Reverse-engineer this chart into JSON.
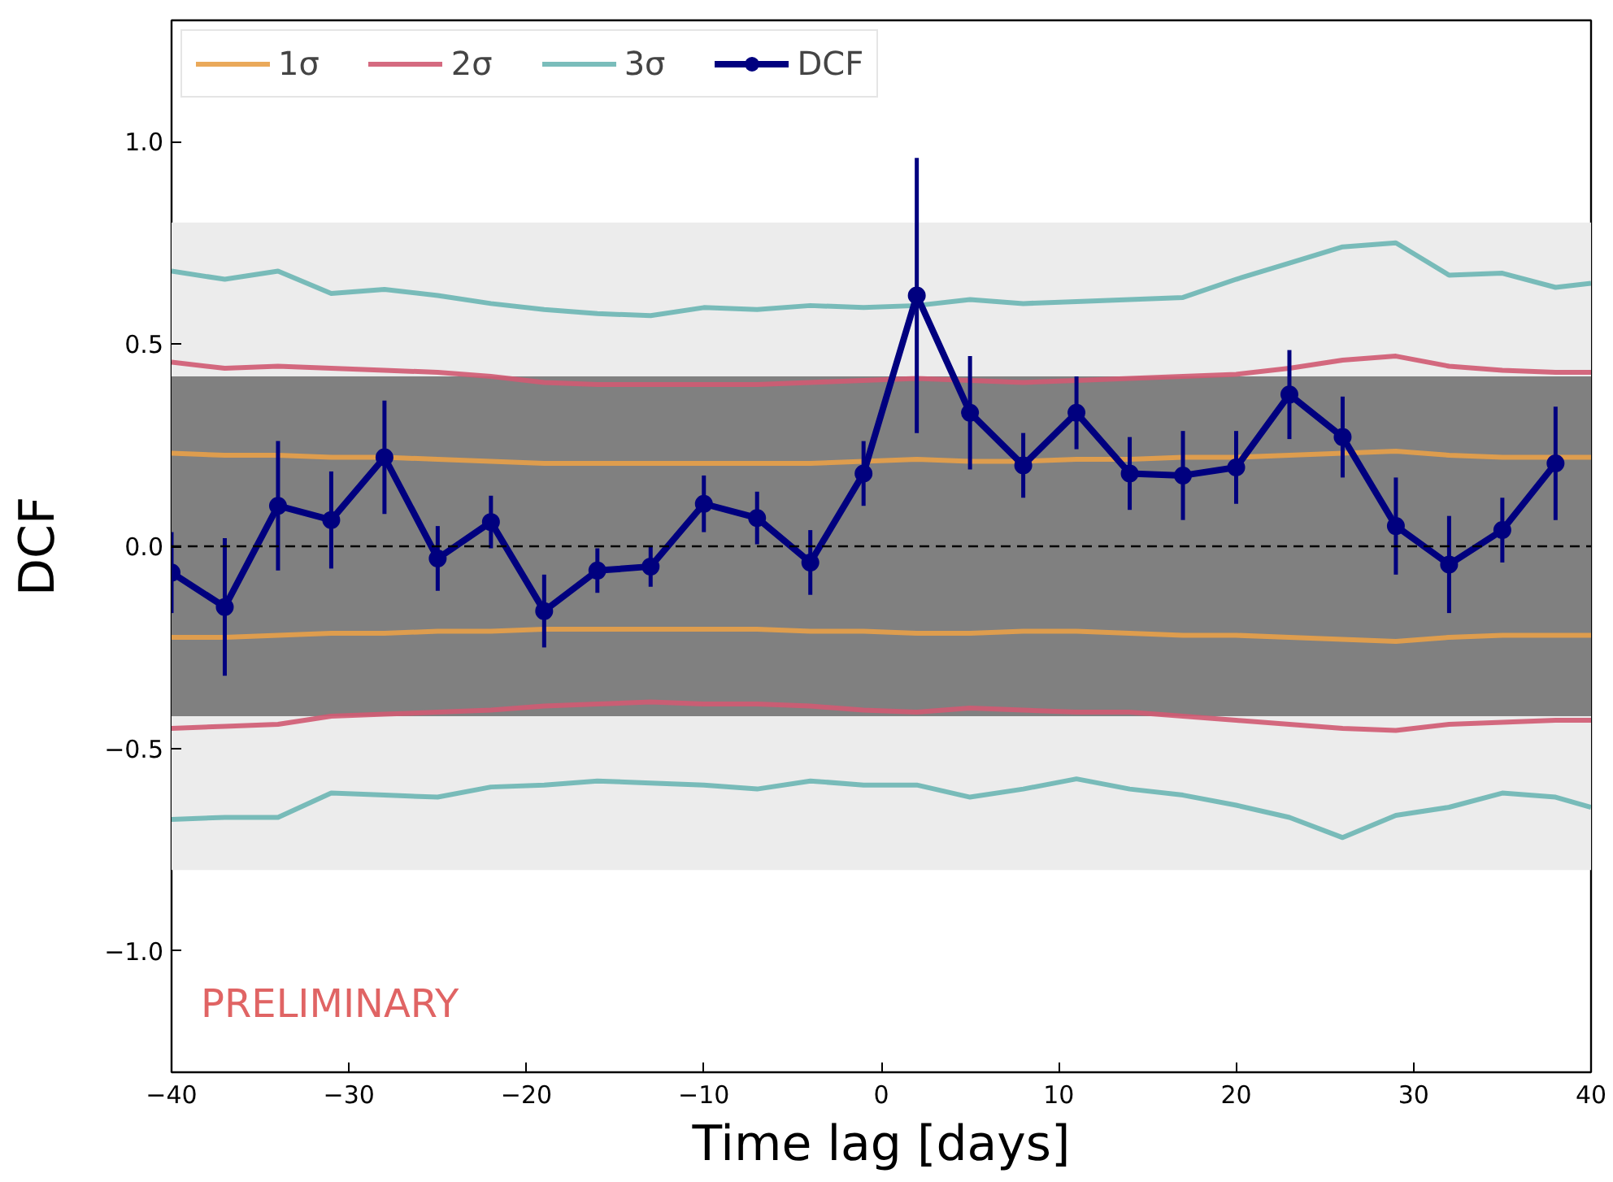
{
  "chart_data": {
    "type": "line",
    "xlabel": "Time lag [days]",
    "ylabel": "DCF",
    "xlim": [
      -40,
      40
    ],
    "ylim": [
      -1.3,
      1.3
    ],
    "xticks": [
      {
        "value": -40,
        "label": "−40"
      },
      {
        "value": -30,
        "label": "−30"
      },
      {
        "value": -20,
        "label": "−20"
      },
      {
        "value": -10,
        "label": "−10"
      },
      0,
      10,
      20,
      30,
      40
    ],
    "yticks": [
      {
        "value": -1,
        "label": "−1.0"
      },
      {
        "value": -0.5,
        "label": "−0.5"
      },
      {
        "value": 0,
        "label": "0.0"
      },
      {
        "value": 0.5,
        "label": "0.5"
      },
      {
        "value": 1,
        "label": "1.0"
      }
    ],
    "grid": false,
    "legend": "top left",
    "marker": "circle",
    "line_style": "solid",
    "series": [
      {
        "name": "1σ",
        "color": "#e8a048",
        "marker": "none",
        "x": [
          -40,
          -37,
          -34,
          -31,
          -28,
          -25,
          -22,
          -19,
          -16,
          -13,
          -10,
          -7,
          -4,
          -1,
          2,
          5,
          8,
          11,
          14,
          17,
          20,
          23,
          26,
          29,
          32,
          35,
          38,
          40
        ],
        "values": [
          0.23,
          0.225,
          0.225,
          0.22,
          0.22,
          0.215,
          0.21,
          0.205,
          0.205,
          0.205,
          0.205,
          0.205,
          0.205,
          0.21,
          0.215,
          0.21,
          0.21,
          0.215,
          0.215,
          0.22,
          0.22,
          0.225,
          0.23,
          0.235,
          0.225,
          0.22,
          0.22,
          0.22
        ]
      },
      {
        "color": "#e8a048",
        "marker": "none",
        "x": [
          -40,
          -37,
          -34,
          -31,
          -28,
          -25,
          -22,
          -19,
          -16,
          -13,
          -10,
          -7,
          -4,
          -1,
          2,
          5,
          8,
          11,
          14,
          17,
          20,
          23,
          26,
          29,
          32,
          35,
          38,
          40
        ],
        "values": [
          -0.225,
          -0.225,
          -0.22,
          -0.215,
          -0.215,
          -0.21,
          -0.21,
          -0.205,
          -0.205,
          -0.205,
          -0.205,
          -0.205,
          -0.21,
          -0.21,
          -0.215,
          -0.215,
          -0.21,
          -0.21,
          -0.215,
          -0.22,
          -0.22,
          -0.225,
          -0.23,
          -0.235,
          -0.225,
          -0.22,
          -0.22,
          -0.22
        ]
      },
      {
        "name": "2σ",
        "color": "#d05a72",
        "marker": "none",
        "x": [
          -40,
          -37,
          -34,
          -31,
          -28,
          -25,
          -22,
          -19,
          -16,
          -13,
          -10,
          -7,
          -4,
          -1,
          2,
          5,
          8,
          11,
          14,
          17,
          20,
          23,
          26,
          29,
          32,
          35,
          38,
          40
        ],
        "values": [
          0.455,
          0.44,
          0.445,
          0.44,
          0.435,
          0.43,
          0.42,
          0.405,
          0.4,
          0.4,
          0.4,
          0.4,
          0.405,
          0.41,
          0.415,
          0.41,
          0.405,
          0.41,
          0.415,
          0.42,
          0.425,
          0.44,
          0.46,
          0.47,
          0.445,
          0.435,
          0.43,
          0.43
        ]
      },
      {
        "color": "#d05a72",
        "marker": "none",
        "x": [
          -40,
          -37,
          -34,
          -31,
          -28,
          -25,
          -22,
          -19,
          -16,
          -13,
          -10,
          -7,
          -4,
          -1,
          2,
          5,
          8,
          11,
          14,
          17,
          20,
          23,
          26,
          29,
          32,
          35,
          38,
          40
        ],
        "values": [
          -0.45,
          -0.445,
          -0.44,
          -0.42,
          -0.415,
          -0.41,
          -0.405,
          -0.395,
          -0.39,
          -0.385,
          -0.39,
          -0.39,
          -0.395,
          -0.405,
          -0.41,
          -0.4,
          -0.405,
          -0.41,
          -0.41,
          -0.42,
          -0.43,
          -0.44,
          -0.45,
          -0.455,
          -0.44,
          -0.435,
          -0.43,
          -0.43
        ]
      },
      {
        "name": "3σ",
        "color": "#6cb6b4",
        "marker": "none",
        "x": [
          -40,
          -37,
          -34,
          -31,
          -28,
          -25,
          -22,
          -19,
          -16,
          -13,
          -10,
          -7,
          -4,
          -1,
          2,
          5,
          8,
          11,
          14,
          17,
          20,
          23,
          26,
          29,
          32,
          35,
          38,
          40
        ],
        "values": [
          0.68,
          0.66,
          0.68,
          0.625,
          0.635,
          0.62,
          0.6,
          0.585,
          0.575,
          0.57,
          0.59,
          0.585,
          0.595,
          0.59,
          0.595,
          0.61,
          0.6,
          0.605,
          0.61,
          0.615,
          0.66,
          0.7,
          0.74,
          0.75,
          0.67,
          0.675,
          0.64,
          0.65
        ]
      },
      {
        "color": "#6cb6b4",
        "marker": "none",
        "x": [
          -40,
          -37,
          -34,
          -31,
          -28,
          -25,
          -22,
          -19,
          -16,
          -13,
          -10,
          -7,
          -4,
          -1,
          2,
          5,
          8,
          11,
          14,
          17,
          20,
          23,
          26,
          29,
          32,
          35,
          38,
          40
        ],
        "values": [
          -0.675,
          -0.67,
          -0.67,
          -0.61,
          -0.615,
          -0.62,
          -0.595,
          -0.59,
          -0.58,
          -0.585,
          -0.59,
          -0.6,
          -0.58,
          -0.59,
          -0.59,
          -0.62,
          -0.6,
          -0.575,
          -0.6,
          -0.615,
          -0.64,
          -0.67,
          -0.72,
          -0.665,
          -0.645,
          -0.61,
          -0.62,
          -0.645
        ]
      },
      {
        "name": "DCF",
        "color": "#00007f",
        "x": [
          -40,
          -37,
          -34,
          -31,
          -28,
          -25,
          -22,
          -19,
          -16,
          -13,
          -10,
          -7,
          -4,
          -1,
          2,
          5,
          8,
          11,
          14,
          17,
          20,
          23,
          26,
          29,
          32,
          35,
          38
        ],
        "values": [
          -0.065,
          -0.15,
          0.1,
          0.065,
          0.22,
          -0.03,
          0.06,
          -0.16,
          -0.06,
          -0.05,
          0.105,
          0.07,
          -0.04,
          0.18,
          0.62,
          0.33,
          0.2,
          0.33,
          0.18,
          0.175,
          0.195,
          0.375,
          0.27,
          0.05,
          -0.045,
          0.04,
          0.205
        ],
        "errors": [
          0.1,
          0.17,
          0.16,
          0.12,
          0.14,
          0.08,
          0.065,
          0.09,
          0.055,
          0.05,
          0.07,
          0.065,
          0.08,
          0.08,
          0.34,
          0.14,
          0.08,
          0.09,
          0.09,
          0.11,
          0.09,
          0.11,
          0.1,
          0.12,
          0.12,
          0.08,
          0.14
        ]
      }
    ],
    "ref_lines": [
      {
        "axis": "y",
        "value": 0,
        "color": "#000000",
        "line_style": "dashed"
      }
    ],
    "bands": [
      {
        "axis": "y",
        "from": -0.8,
        "to": 0.8,
        "color": "#ececec"
      },
      {
        "axis": "y",
        "from": -0.42,
        "to": 0.42,
        "color": "#808080"
      }
    ],
    "annotations": [
      "PRELIMINARY"
    ]
  }
}
